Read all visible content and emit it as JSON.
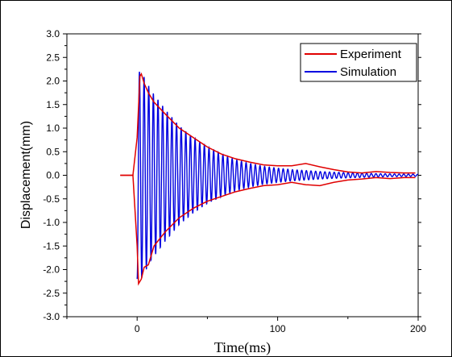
{
  "chart_data": {
    "type": "line",
    "xlabel": "Time(ms)",
    "ylabel": "Displacement(mm)",
    "xlim": [
      -50,
      200
    ],
    "ylim": [
      -3.0,
      3.0
    ],
    "x_ticks": [
      0,
      100,
      200
    ],
    "y_ticks": [
      -3.0,
      -2.5,
      -2.0,
      -1.5,
      -1.0,
      -0.5,
      0.0,
      0.5,
      1.0,
      1.5,
      2.0,
      2.5,
      3.0
    ],
    "x_tick_labels": [
      "0",
      "100",
      "200"
    ],
    "y_tick_labels": [
      "-3.0",
      "-2.5",
      "-2.0",
      "-1.5",
      "-1.0",
      "-0.5",
      "0.0",
      "0.5",
      "1.0",
      "1.5",
      "2.0",
      "2.5",
      "3.0"
    ],
    "grid": false,
    "legend_position": "top-right",
    "series": [
      {
        "name": "Experiment",
        "color": "#e00000",
        "upper_envelope": {
          "x": [
            -12,
            -5,
            -3,
            0,
            2,
            3,
            5,
            8,
            12,
            20,
            30,
            40,
            50,
            60,
            70,
            80,
            90,
            100,
            110,
            120,
            130,
            140,
            150,
            160,
            170,
            180,
            190,
            198
          ],
          "y": [
            0.0,
            0.0,
            0.0,
            0.8,
            2.1,
            2.15,
            1.95,
            1.75,
            1.55,
            1.3,
            1.0,
            0.8,
            0.6,
            0.45,
            0.35,
            0.28,
            0.22,
            0.2,
            0.2,
            0.25,
            0.18,
            0.12,
            0.07,
            0.05,
            0.08,
            0.06,
            0.05,
            0.05
          ]
        },
        "lower_envelope": {
          "x": [
            -12,
            -5,
            -3,
            0,
            1,
            3,
            5,
            8,
            12,
            20,
            30,
            40,
            50,
            60,
            70,
            80,
            90,
            100,
            110,
            120,
            130,
            140,
            150,
            160,
            170,
            180,
            190,
            198
          ],
          "y": [
            0.0,
            0.0,
            0.0,
            -1.5,
            -2.3,
            -2.2,
            -1.95,
            -1.9,
            -1.5,
            -1.2,
            -0.9,
            -0.7,
            -0.55,
            -0.45,
            -0.35,
            -0.28,
            -0.22,
            -0.2,
            -0.15,
            -0.2,
            -0.22,
            -0.15,
            -0.1,
            -0.08,
            -0.05,
            -0.07,
            -0.05,
            -0.05
          ]
        }
      },
      {
        "name": "Simulation",
        "color": "#0000e0",
        "period_ms": 3.3,
        "start_ms": 0,
        "amplitude": {
          "x": [
            0,
            3,
            10,
            20,
            30,
            40,
            50,
            60,
            70,
            80,
            90,
            100,
            110,
            120,
            130,
            140,
            150,
            160,
            170,
            180,
            190,
            200
          ],
          "y": [
            2.2,
            2.2,
            1.8,
            1.4,
            1.05,
            0.8,
            0.6,
            0.45,
            0.33,
            0.25,
            0.19,
            0.15,
            0.12,
            0.1,
            0.08,
            0.065,
            0.055,
            0.045,
            0.035,
            0.03,
            0.025,
            0.02
          ]
        }
      }
    ]
  }
}
